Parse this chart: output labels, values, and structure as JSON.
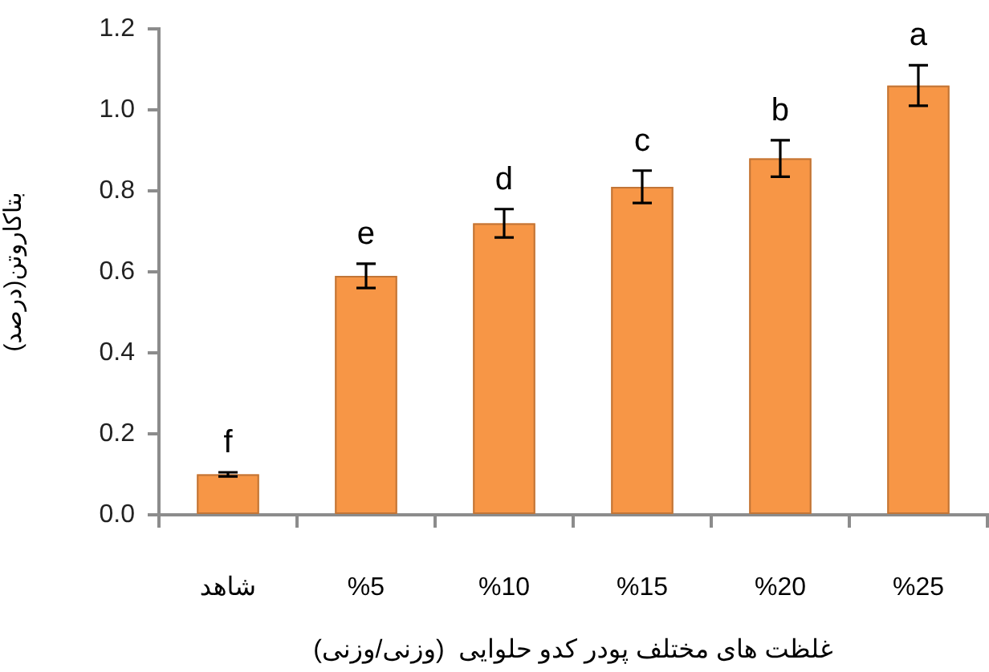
{
  "chart_data": {
    "type": "bar",
    "xlabel": "غلظت های مختلف پودر کدو حلوایی  (وزنی/وزنی)",
    "ylabel": "بتاکاروتن(درصد)",
    "categories": [
      "شاهد",
      "%5",
      "%10",
      "%15",
      "%20",
      "%25"
    ],
    "values": [
      0.1,
      0.59,
      0.72,
      0.81,
      0.88,
      1.06
    ],
    "errors": [
      0.005,
      0.03,
      0.035,
      0.04,
      0.045,
      0.05
    ],
    "value_labels": [
      "f",
      "e",
      "d",
      "c",
      "b",
      "a"
    ],
    "color": "#f79646",
    "ylim": [
      0,
      1.2
    ],
    "yticks": [
      {
        "value": 0,
        "label": "0.0"
      },
      0.2,
      0.4,
      0.6,
      0.8,
      {
        "value": 1,
        "label": "1.0"
      },
      1.2
    ],
    "grid": false,
    "legend": false
  }
}
